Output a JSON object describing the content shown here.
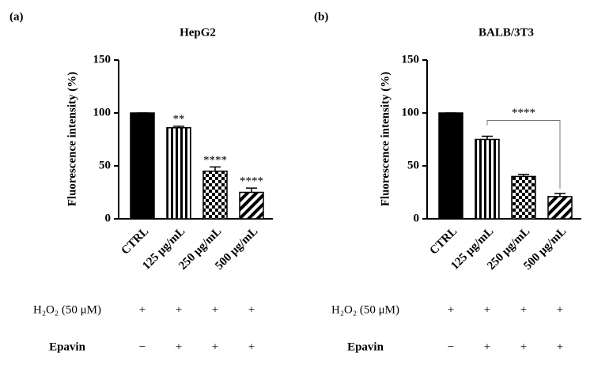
{
  "chart_data": [
    {
      "type": "bar",
      "panel": "(a)",
      "title": "HepG2",
      "ylabel": "Fluorescence intensity (%)",
      "categories": [
        "CTRL",
        "125 μg/mL",
        "250 μg/mL",
        "500 μg/mL"
      ],
      "values": [
        100,
        86,
        45,
        25
      ],
      "errors": [
        0,
        1.5,
        4,
        4
      ],
      "patterns": [
        "solid",
        "vertical",
        "checker",
        "diagonal"
      ],
      "color": "#000000",
      "annotations": [
        null,
        "**",
        "****",
        "****"
      ],
      "ylim": [
        0,
        150
      ],
      "yticks": [
        0,
        50,
        100,
        150
      ],
      "treatments": [
        {
          "name": "H₂O₂ (50 μM)",
          "values": [
            "+",
            "+",
            "+",
            "+"
          ]
        },
        {
          "name": "Epavin",
          "values": [
            "−",
            "+",
            "+",
            "+"
          ]
        }
      ]
    },
    {
      "type": "bar",
      "panel": "(b)",
      "title": "BALB/3T3",
      "ylabel": "Fluorescence intensity (%)",
      "categories": [
        "CTRL",
        "125 μg/mL",
        "250 μg/mL",
        "500 μg/mL"
      ],
      "values": [
        100,
        75,
        40,
        21
      ],
      "errors": [
        0,
        3,
        2,
        3
      ],
      "patterns": [
        "solid",
        "vertical",
        "checker",
        "diagonal"
      ],
      "color": "#000000",
      "comparisons": [
        {
          "between": [
            "125 μg/mL",
            "500 μg/mL"
          ],
          "label": "****"
        }
      ],
      "ylim": [
        0,
        150
      ],
      "yticks": [
        0,
        50,
        100,
        150
      ],
      "treatments": [
        {
          "name": "H₂O₂ (50 μM)",
          "values": [
            "+",
            "+",
            "+",
            "+"
          ]
        },
        {
          "name": "Epavin",
          "values": [
            "−",
            "+",
            "+",
            "+"
          ]
        }
      ]
    }
  ]
}
